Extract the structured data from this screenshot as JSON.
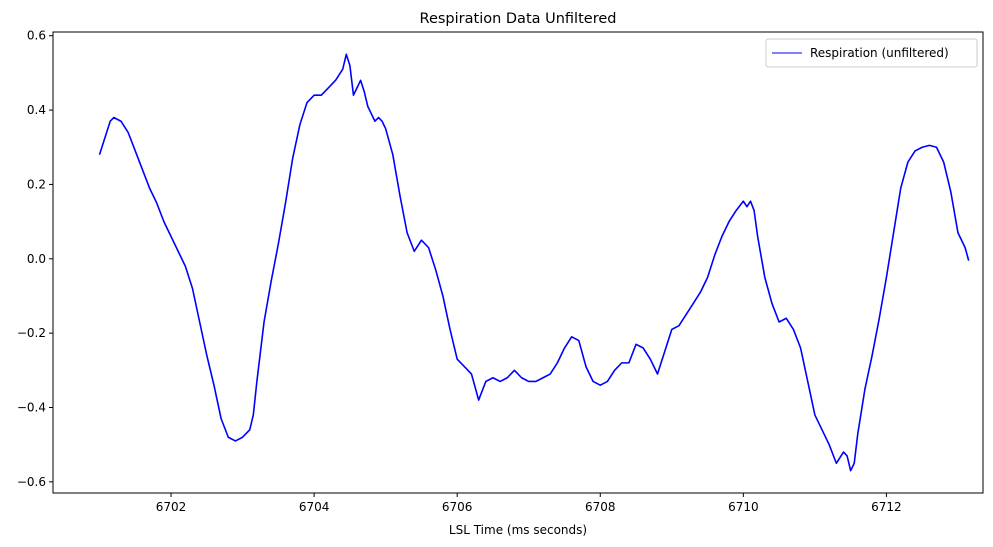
{
  "chart_data": {
    "type": "line",
    "title": "Respiration Data Unfiltered",
    "xlabel": "LSL Time (ms seconds)",
    "ylabel": "",
    "xlim": [
      6700.35,
      6713.35
    ],
    "ylim": [
      -0.63,
      0.61
    ],
    "xticks": [
      6702,
      6704,
      6706,
      6708,
      6710,
      6712
    ],
    "xtick_labels": [
      "6702",
      "6704",
      "6706",
      "6708",
      "6710",
      "6712"
    ],
    "yticks": [
      -0.6,
      -0.4,
      -0.2,
      0.0,
      0.2,
      0.4,
      0.6
    ],
    "ytick_labels": [
      "−0.6",
      "−0.4",
      "−0.2",
      "0.0",
      "0.2",
      "0.4",
      "0.6"
    ],
    "grid": false,
    "legend_position": "top-right",
    "series": [
      {
        "name": "Respiration (unfiltered)",
        "color": "#0000ff",
        "points": [
          [
            6701.0,
            0.28
          ],
          [
            6701.05,
            0.31
          ],
          [
            6701.1,
            0.34
          ],
          [
            6701.15,
            0.37
          ],
          [
            6701.2,
            0.38
          ],
          [
            6701.3,
            0.37
          ],
          [
            6701.4,
            0.34
          ],
          [
            6701.5,
            0.29
          ],
          [
            6701.6,
            0.24
          ],
          [
            6701.7,
            0.19
          ],
          [
            6701.8,
            0.15
          ],
          [
            6701.9,
            0.1
          ],
          [
            6702.0,
            0.06
          ],
          [
            6702.1,
            0.02
          ],
          [
            6702.2,
            -0.02
          ],
          [
            6702.3,
            -0.08
          ],
          [
            6702.4,
            -0.17
          ],
          [
            6702.5,
            -0.26
          ],
          [
            6702.6,
            -0.34
          ],
          [
            6702.7,
            -0.43
          ],
          [
            6702.8,
            -0.48
          ],
          [
            6702.9,
            -0.49
          ],
          [
            6703.0,
            -0.48
          ],
          [
            6703.1,
            -0.46
          ],
          [
            6703.15,
            -0.42
          ],
          [
            6703.2,
            -0.33
          ],
          [
            6703.3,
            -0.17
          ],
          [
            6703.4,
            -0.06
          ],
          [
            6703.5,
            0.04
          ],
          [
            6703.6,
            0.15
          ],
          [
            6703.7,
            0.27
          ],
          [
            6703.8,
            0.36
          ],
          [
            6703.9,
            0.42
          ],
          [
            6704.0,
            0.44
          ],
          [
            6704.1,
            0.44
          ],
          [
            6704.2,
            0.46
          ],
          [
            6704.3,
            0.48
          ],
          [
            6704.4,
            0.51
          ],
          [
            6704.45,
            0.55
          ],
          [
            6704.5,
            0.52
          ],
          [
            6704.55,
            0.44
          ],
          [
            6704.6,
            0.46
          ],
          [
            6704.65,
            0.48
          ],
          [
            6704.7,
            0.45
          ],
          [
            6704.75,
            0.41
          ],
          [
            6704.8,
            0.39
          ],
          [
            6704.85,
            0.37
          ],
          [
            6704.9,
            0.38
          ],
          [
            6704.95,
            0.37
          ],
          [
            6705.0,
            0.35
          ],
          [
            6705.1,
            0.28
          ],
          [
            6705.2,
            0.17
          ],
          [
            6705.3,
            0.07
          ],
          [
            6705.4,
            0.02
          ],
          [
            6705.5,
            0.05
          ],
          [
            6705.6,
            0.03
          ],
          [
            6705.7,
            -0.03
          ],
          [
            6705.8,
            -0.1
          ],
          [
            6705.9,
            -0.19
          ],
          [
            6706.0,
            -0.27
          ],
          [
            6706.1,
            -0.29
          ],
          [
            6706.2,
            -0.31
          ],
          [
            6706.3,
            -0.38
          ],
          [
            6706.4,
            -0.33
          ],
          [
            6706.5,
            -0.32
          ],
          [
            6706.6,
            -0.33
          ],
          [
            6706.7,
            -0.32
          ],
          [
            6706.8,
            -0.3
          ],
          [
            6706.9,
            -0.32
          ],
          [
            6707.0,
            -0.33
          ],
          [
            6707.1,
            -0.33
          ],
          [
            6707.2,
            -0.32
          ],
          [
            6707.3,
            -0.31
          ],
          [
            6707.4,
            -0.28
          ],
          [
            6707.5,
            -0.24
          ],
          [
            6707.6,
            -0.21
          ],
          [
            6707.7,
            -0.22
          ],
          [
            6707.8,
            -0.29
          ],
          [
            6707.9,
            -0.33
          ],
          [
            6708.0,
            -0.34
          ],
          [
            6708.1,
            -0.33
          ],
          [
            6708.2,
            -0.3
          ],
          [
            6708.3,
            -0.28
          ],
          [
            6708.4,
            -0.28
          ],
          [
            6708.5,
            -0.23
          ],
          [
            6708.6,
            -0.24
          ],
          [
            6708.7,
            -0.27
          ],
          [
            6708.8,
            -0.31
          ],
          [
            6708.9,
            -0.25
          ],
          [
            6709.0,
            -0.19
          ],
          [
            6709.1,
            -0.18
          ],
          [
            6709.2,
            -0.15
          ],
          [
            6709.3,
            -0.12
          ],
          [
            6709.4,
            -0.09
          ],
          [
            6709.5,
            -0.05
          ],
          [
            6709.6,
            0.01
          ],
          [
            6709.7,
            0.06
          ],
          [
            6709.8,
            0.1
          ],
          [
            6709.9,
            0.13
          ],
          [
            6710.0,
            0.155
          ],
          [
            6710.05,
            0.14
          ],
          [
            6710.1,
            0.155
          ],
          [
            6710.15,
            0.13
          ],
          [
            6710.2,
            0.06
          ],
          [
            6710.3,
            -0.05
          ],
          [
            6710.4,
            -0.12
          ],
          [
            6710.5,
            -0.17
          ],
          [
            6710.6,
            -0.16
          ],
          [
            6710.7,
            -0.19
          ],
          [
            6710.8,
            -0.24
          ],
          [
            6710.9,
            -0.33
          ],
          [
            6711.0,
            -0.42
          ],
          [
            6711.1,
            -0.46
          ],
          [
            6711.2,
            -0.5
          ],
          [
            6711.3,
            -0.55
          ],
          [
            6711.4,
            -0.52
          ],
          [
            6711.45,
            -0.53
          ],
          [
            6711.5,
            -0.57
          ],
          [
            6711.55,
            -0.55
          ],
          [
            6711.6,
            -0.47
          ],
          [
            6711.7,
            -0.35
          ],
          [
            6711.8,
            -0.26
          ],
          [
            6711.9,
            -0.16
          ],
          [
            6712.0,
            -0.05
          ],
          [
            6712.1,
            0.07
          ],
          [
            6712.2,
            0.19
          ],
          [
            6712.3,
            0.26
          ],
          [
            6712.4,
            0.29
          ],
          [
            6712.5,
            0.3
          ],
          [
            6712.6,
            0.305
          ],
          [
            6712.7,
            0.3
          ],
          [
            6712.8,
            0.26
          ],
          [
            6712.9,
            0.18
          ],
          [
            6713.0,
            0.07
          ],
          [
            6713.1,
            0.03
          ],
          [
            6713.15,
            -0.005
          ]
        ]
      }
    ]
  }
}
